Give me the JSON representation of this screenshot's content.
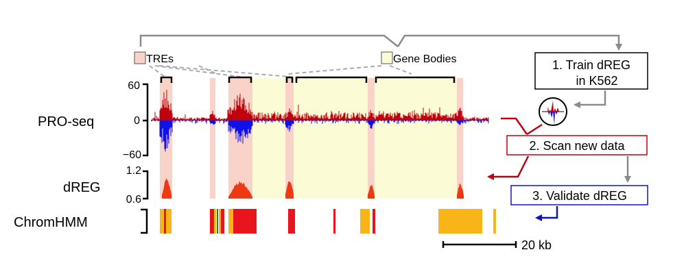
{
  "legend": {
    "tres": "TREs",
    "gene_bodies": "Gene Bodies"
  },
  "tracks": {
    "proseq": {
      "label": "PRO-seq",
      "tick_top": "60",
      "tick_mid": "0",
      "tick_bottom": "−60"
    },
    "dreg": {
      "label": "dREG",
      "tick_top": "1.2",
      "tick_bottom": "0.6"
    },
    "chromhmm": {
      "label": "ChromHMM"
    }
  },
  "steps": {
    "train_line1": "1. Train dREG",
    "train_line2": "in K562",
    "scan": "2. Scan new data",
    "validate": "3. Validate dREG"
  },
  "scale_bar": {
    "label": "20 kb"
  },
  "colors": {
    "tre_fill": "#f9d2c8",
    "gene_body_fill": "#fbfbd6",
    "proseq_plus": "#c0000c",
    "proseq_minus": "#1010e8",
    "dreg_signal": "#ee3a12",
    "chromhmm_active": "#e8141e",
    "chromhmm_transcribed": "#f9b417",
    "chromhmm_other": "#1a8a3a",
    "arrow_gray": "#8a8a8a",
    "scan_red": "#c0000c",
    "validate_blue": "#1010c8"
  },
  "icons": {
    "train_output": "mini-signal-icon"
  }
}
